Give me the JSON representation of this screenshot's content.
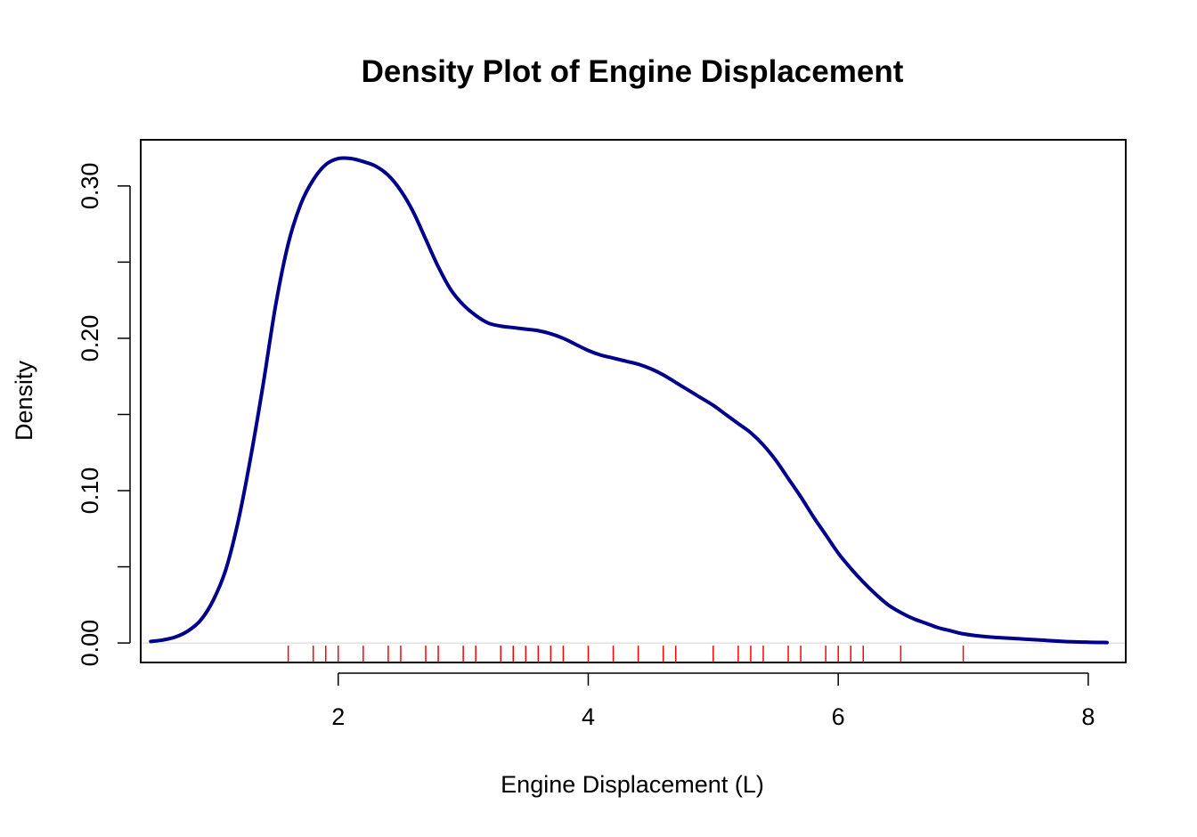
{
  "chart_data": {
    "type": "line",
    "title": "Density Plot of Engine Displacement",
    "xlabel": "Engine Displacement (L)",
    "ylabel": "Density",
    "xlim": [
      0.42,
      8.3
    ],
    "ylim": [
      -0.0128,
      0.3303
    ],
    "x_ticks": [
      2,
      4,
      6,
      8
    ],
    "x_tick_labels": [
      "2",
      "4",
      "6",
      "8"
    ],
    "y_ticks": [
      0.0,
      0.05,
      0.1,
      0.15,
      0.2,
      0.25,
      0.3
    ],
    "y_tick_labels": [
      "0.00",
      "",
      "0.10",
      "",
      "0.20",
      "",
      "0.30"
    ],
    "grid": false,
    "baseline": 0,
    "colors": {
      "density_line": "#00008B",
      "rug": "#FF0000",
      "baseline": "#D3D3D3"
    },
    "series": [
      {
        "x": [
          0.5,
          0.6,
          0.7,
          0.8,
          0.9,
          1.0,
          1.1,
          1.2,
          1.3,
          1.4,
          1.5,
          1.6,
          1.7,
          1.8,
          1.9,
          2.0,
          2.1,
          2.2,
          2.3,
          2.4,
          2.5,
          2.6,
          2.7,
          2.8,
          2.9,
          3.0,
          3.1,
          3.2,
          3.3,
          3.4,
          3.5,
          3.6,
          3.7,
          3.8,
          3.9,
          4.0,
          4.1,
          4.2,
          4.3,
          4.4,
          4.5,
          4.6,
          4.7,
          4.8,
          4.9,
          5.0,
          5.1,
          5.2,
          5.3,
          5.4,
          5.5,
          5.6,
          5.7,
          5.8,
          5.9,
          6.0,
          6.1,
          6.2,
          6.3,
          6.4,
          6.5,
          6.6,
          6.7,
          6.8,
          6.9,
          7.0,
          7.2,
          7.4,
          7.6,
          7.8,
          8.0,
          8.15
        ],
        "y": [
          0.001,
          0.002,
          0.004,
          0.008,
          0.015,
          0.028,
          0.048,
          0.08,
          0.122,
          0.17,
          0.222,
          0.262,
          0.288,
          0.304,
          0.314,
          0.318,
          0.318,
          0.316,
          0.313,
          0.307,
          0.297,
          0.283,
          0.265,
          0.247,
          0.232,
          0.222,
          0.215,
          0.21,
          0.208,
          0.207,
          0.206,
          0.205,
          0.203,
          0.2,
          0.196,
          0.192,
          0.189,
          0.187,
          0.185,
          0.183,
          0.18,
          0.176,
          0.171,
          0.166,
          0.161,
          0.156,
          0.15,
          0.144,
          0.138,
          0.13,
          0.12,
          0.108,
          0.096,
          0.083,
          0.071,
          0.059,
          0.049,
          0.04,
          0.032,
          0.025,
          0.02,
          0.016,
          0.013,
          0.01,
          0.008,
          0.006,
          0.004,
          0.003,
          0.002,
          0.001,
          0.0005,
          0.0003
        ]
      }
    ],
    "rug": [
      1.6,
      1.8,
      1.9,
      2.0,
      2.2,
      2.4,
      2.5,
      2.7,
      2.8,
      3.0,
      3.1,
      3.3,
      3.4,
      3.5,
      3.6,
      3.7,
      3.8,
      4.0,
      4.2,
      4.4,
      4.6,
      4.7,
      5.0,
      5.2,
      5.3,
      5.4,
      5.6,
      5.7,
      5.9,
      6.0,
      6.1,
      6.2,
      6.5,
      7.0
    ]
  }
}
